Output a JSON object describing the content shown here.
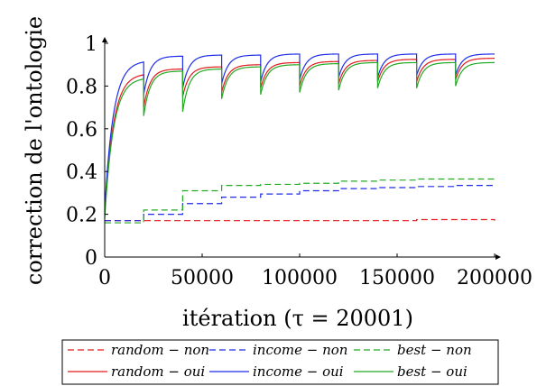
{
  "chart_data": {
    "type": "line",
    "xlabel": "itération (τ = 20001)",
    "ylabel": "correction de l'ontologie",
    "xlim": [
      0,
      200000
    ],
    "ylim": [
      0,
      1
    ],
    "xticks": [
      0,
      50000,
      100000,
      150000,
      200000
    ],
    "xtick_labels": [
      "0",
      "50000",
      "100000",
      "150000",
      "200000"
    ],
    "yticks": [
      0,
      0.2,
      0.4,
      0.6,
      0.8,
      1
    ],
    "ytick_labels": [
      "0",
      "0.2",
      "0.4",
      "0.6",
      "0.8",
      "1"
    ],
    "grid": false,
    "legend_position": "bottom",
    "series": [
      {
        "name": "random − non",
        "color": "#e41a1c",
        "dash": true,
        "x": [
          0,
          20000,
          40000,
          60000,
          80000,
          100000,
          120000,
          140000,
          160000,
          180000,
          200000
        ],
        "y": [
          0.17,
          0.17,
          0.17,
          0.17,
          0.17,
          0.17,
          0.17,
          0.17,
          0.175,
          0.175,
          0.17
        ]
      },
      {
        "name": "income − non",
        "color": "#1f2de8",
        "dash": true,
        "x": [
          0,
          20000,
          40000,
          60000,
          80000,
          100000,
          120000,
          140000,
          160000,
          180000,
          200000
        ],
        "y": [
          0.17,
          0.2,
          0.25,
          0.28,
          0.295,
          0.31,
          0.32,
          0.325,
          0.33,
          0.335,
          0.335
        ]
      },
      {
        "name": "best − non",
        "color": "#22aa22",
        "dash": true,
        "x": [
          0,
          20000,
          40000,
          60000,
          80000,
          100000,
          120000,
          140000,
          160000,
          180000,
          200000
        ],
        "y": [
          0.16,
          0.22,
          0.31,
          0.335,
          0.34,
          0.345,
          0.355,
          0.36,
          0.365,
          0.365,
          0.365
        ]
      },
      {
        "name": "random − oui",
        "color": "#e41a1c",
        "dash": false,
        "start": 0.2,
        "plateau": [
          0.86,
          0.88,
          0.89,
          0.9,
          0.91,
          0.915,
          0.92,
          0.925,
          0.925,
          0.93
        ],
        "dip": [
          0.7,
          0.75,
          0.77,
          0.79,
          0.8,
          0.81,
          0.82,
          0.82,
          0.83
        ]
      },
      {
        "name": "income − oui",
        "color": "#1f2de8",
        "dash": false,
        "start": 0.22,
        "plateau": [
          0.92,
          0.94,
          0.945,
          0.945,
          0.95,
          0.95,
          0.95,
          0.95,
          0.95,
          0.95
        ],
        "dip": [
          0.76,
          0.79,
          0.81,
          0.82,
          0.83,
          0.84,
          0.84,
          0.85,
          0.85
        ]
      },
      {
        "name": "best − oui",
        "color": "#22aa22",
        "dash": false,
        "start": 0.18,
        "plateau": [
          0.84,
          0.87,
          0.88,
          0.89,
          0.9,
          0.905,
          0.91,
          0.91,
          0.91,
          0.91
        ],
        "dip": [
          0.66,
          0.68,
          0.74,
          0.76,
          0.77,
          0.78,
          0.79,
          0.79,
          0.8
        ]
      }
    ]
  }
}
